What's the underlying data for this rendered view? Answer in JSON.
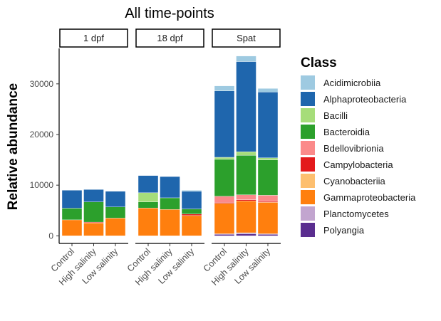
{
  "chart_data": {
    "type": "bar",
    "stacked": true,
    "title": "All time-points",
    "ylabel": "Relative abundance",
    "xlabel": "",
    "ylim": [
      -1500,
      37000
    ],
    "yticks": [
      0,
      10000,
      20000,
      30000
    ],
    "ytick_labels": [
      "0",
      "10000",
      "20000",
      "30000"
    ],
    "legend": {
      "title": "Class",
      "placement": "right"
    },
    "panels": [
      {
        "label": "1 dpf",
        "categories": [
          "Control",
          "High salinity",
          "Low salinity"
        ]
      },
      {
        "label": "18 dpf",
        "categories": [
          "Control",
          "High salinity",
          "Low salinity"
        ]
      },
      {
        "label": "Spat",
        "categories": [
          "Control",
          "High salinity",
          "Low salinity"
        ]
      }
    ],
    "series": [
      {
        "name": "Polyangia",
        "color": "#5a2d8f",
        "values": [
          [
            0,
            0,
            0
          ],
          [
            0,
            0,
            0
          ],
          [
            300,
            400,
            300
          ]
        ]
      },
      {
        "name": "Planctomycetes",
        "color": "#c2a5cf",
        "values": [
          [
            0,
            0,
            0
          ],
          [
            0,
            0,
            0
          ],
          [
            100,
            200,
            100
          ]
        ]
      },
      {
        "name": "Gammaproteobacteria",
        "color": "#ff7f0e",
        "values": [
          [
            3150,
            2550,
            3500
          ],
          [
            5500,
            5200,
            4000
          ],
          [
            6000,
            6300,
            6200
          ]
        ]
      },
      {
        "name": "Cyanobacteriia",
        "color": "#fdbf6f",
        "values": [
          [
            0,
            0,
            0
          ],
          [
            0,
            0,
            0
          ],
          [
            0,
            0,
            0
          ]
        ]
      },
      {
        "name": "Campylobacteria",
        "color": "#e31a1c",
        "values": [
          [
            0,
            150,
            0
          ],
          [
            0,
            0,
            300
          ],
          [
            200,
            200,
            200
          ]
        ]
      },
      {
        "name": "Bdellovibrionia",
        "color": "#fb8a8a",
        "values": [
          [
            0,
            0,
            0
          ],
          [
            0,
            0,
            0
          ],
          [
            1200,
            1000,
            1200
          ]
        ]
      },
      {
        "name": "Bacteroidia",
        "color": "#2ca02c",
        "values": [
          [
            2300,
            4000,
            2200
          ],
          [
            1200,
            2300,
            1000
          ],
          [
            7300,
            7800,
            7000
          ]
        ]
      },
      {
        "name": "Bacilli",
        "color": "#a6dd7a",
        "values": [
          [
            0,
            0,
            0
          ],
          [
            1800,
            0,
            0
          ],
          [
            400,
            700,
            400
          ]
        ]
      },
      {
        "name": "Alphaproteobacteria",
        "color": "#1f66ad",
        "values": [
          [
            3550,
            2450,
            3100
          ],
          [
            3400,
            4200,
            3500
          ],
          [
            13100,
            17800,
            13000
          ]
        ]
      },
      {
        "name": "Acidimicrobiia",
        "color": "#9ecae1",
        "values": [
          [
            0,
            0,
            0
          ],
          [
            0,
            0,
            200
          ],
          [
            1000,
            1100,
            700
          ]
        ]
      }
    ],
    "legend_order": [
      "Acidimicrobiia",
      "Alphaproteobacteria",
      "Bacilli",
      "Bacteroidia",
      "Bdellovibrionia",
      "Campylobacteria",
      "Cyanobacteriia",
      "Gammaproteobacteria",
      "Planctomycetes",
      "Polyangia"
    ],
    "grid": false
  }
}
